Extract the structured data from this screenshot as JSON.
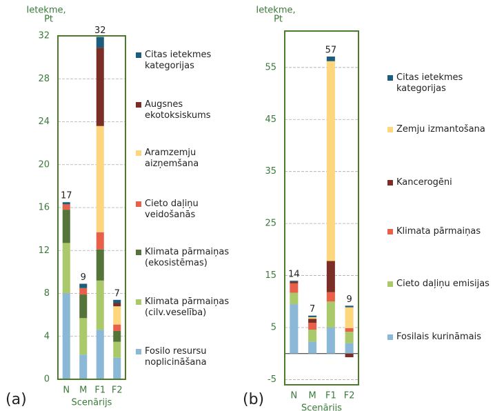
{
  "chart_data": [
    {
      "type": "stacked_bar",
      "panel_label": "(a)",
      "ylabel": [
        "Ietekme,",
        "Pt"
      ],
      "xlabel": "Scenārijs",
      "categories": [
        "N",
        "M",
        "F1",
        "F2"
      ],
      "ylim": [
        0,
        32
      ],
      "yticks": [
        0,
        4,
        8,
        12,
        16,
        20,
        24,
        28,
        32
      ],
      "grid": true,
      "totals": [
        17,
        9,
        32,
        7
      ],
      "series": [
        {
          "name": "Fosilo resursu noplicināšana",
          "color": "#8ab8d6",
          "values": [
            8.0,
            2.3,
            4.6,
            2.0
          ]
        },
        {
          "name": "Klimata pārmaiņas (cilv.veselība)",
          "color": "#a9c96a",
          "values": [
            4.7,
            3.4,
            4.6,
            1.5
          ]
        },
        {
          "name": "Klimata pārmaiņas (ekosistēmas)",
          "color": "#55743a",
          "values": [
            3.1,
            2.2,
            2.9,
            1.0
          ]
        },
        {
          "name": "Cieto daļiņu veidošanās",
          "color": "#e8604a",
          "values": [
            0.5,
            0.6,
            1.6,
            0.6
          ]
        },
        {
          "name": "Aramzemju aizņemšana",
          "color": "#fdd67e",
          "values": [
            0,
            0,
            9.9,
            1.7
          ]
        },
        {
          "name": "Augsnes ekotoksiskums",
          "color": "#7b2e26",
          "values": [
            0,
            0,
            7.3,
            0.3
          ]
        },
        {
          "name": "Citas ietekmes kategorijas",
          "color": "#1c5c7d",
          "values": [
            0.2,
            0.4,
            1.0,
            0.3
          ]
        }
      ]
    },
    {
      "type": "stacked_bar",
      "panel_label": "(b)",
      "ylabel": [
        "Ietekme,",
        "Pt"
      ],
      "xlabel": "Scenārijs",
      "categories": [
        "N",
        "M",
        "F1",
        "F2"
      ],
      "ylim": [
        -6,
        62
      ],
      "yticks": [
        -5,
        5,
        15,
        25,
        35,
        45,
        55
      ],
      "grid": true,
      "totals": [
        14,
        7,
        57,
        9
      ],
      "series": [
        {
          "name": "Fosilais kurināmais",
          "color": "#8ab8d6",
          "values": [
            9.5,
            2.3,
            5.0,
            2.0
          ]
        },
        {
          "name": "Cieto daļiņu emisijas",
          "color": "#a9c96a",
          "values": [
            2.2,
            2.3,
            5.0,
            2.2
          ]
        },
        {
          "name": "Klimata pārmaiņas",
          "color": "#e8604a",
          "values": [
            1.8,
            1.3,
            1.8,
            0.7
          ]
        },
        {
          "name": "Kancerogēni",
          "color": "#7b2e26",
          "values": [
            0.3,
            0.8,
            6.0,
            -0.7
          ]
        },
        {
          "name": "Zemju izmantošana",
          "color": "#fdd67e",
          "values": [
            0,
            0.3,
            38.4,
            4.0
          ]
        },
        {
          "name": "Citas ietekmes kategorijas",
          "color": "#1c5c7d",
          "values": [
            0.2,
            0.3,
            0.9,
            0.3
          ]
        }
      ]
    }
  ]
}
